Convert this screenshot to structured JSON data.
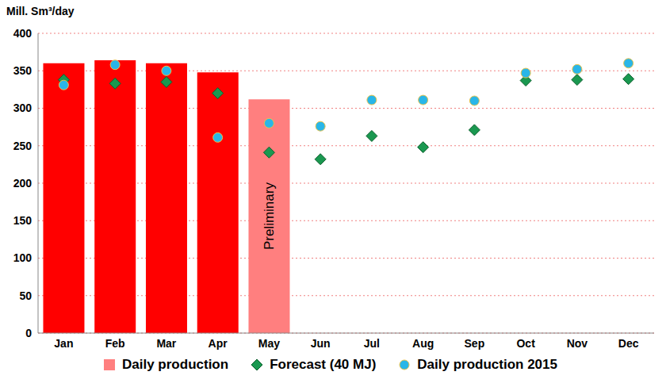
{
  "chart_data": {
    "type": "bar",
    "y_label": "Mill. Sm³/day",
    "categories": [
      "Jan",
      "Feb",
      "Mar",
      "Apr",
      "May",
      "Jun",
      "Jul",
      "Aug",
      "Sep",
      "Oct",
      "Nov",
      "Dec"
    ],
    "series": [
      {
        "name": "Daily production",
        "type": "bar",
        "color": "#ff7f7f",
        "colors": [
          "#ff0000",
          "#ff0000",
          "#ff0000",
          "#ff0000",
          "#ff7f7f",
          "#ff7f7f",
          "#ff7f7f",
          "#ff7f7f",
          "#ff7f7f",
          "#ff7f7f",
          "#ff7f7f",
          "#ff7f7f"
        ],
        "values": [
          360,
          364,
          360,
          348,
          312,
          null,
          null,
          null,
          null,
          null,
          null,
          null
        ]
      },
      {
        "name": "Forecast (40 MJ)",
        "type": "scatter",
        "marker": "diamond",
        "color": "#1a9850",
        "values": [
          338,
          333,
          335,
          320,
          241,
          232,
          263,
          248,
          271,
          337,
          338,
          339
        ]
      },
      {
        "name": "Daily production 2015",
        "type": "scatter",
        "marker": "circle",
        "color": "#29b6e8",
        "values": [
          331,
          358,
          350,
          261,
          280,
          276,
          311,
          311,
          310,
          347,
          352,
          360
        ]
      }
    ],
    "annotation": {
      "text": "Preliminary",
      "category": "May"
    },
    "ylim": [
      0,
      400
    ],
    "yticks": [
      0,
      50,
      100,
      150,
      200,
      250,
      300,
      350,
      400
    ],
    "grid": true,
    "legend": "bottom"
  }
}
